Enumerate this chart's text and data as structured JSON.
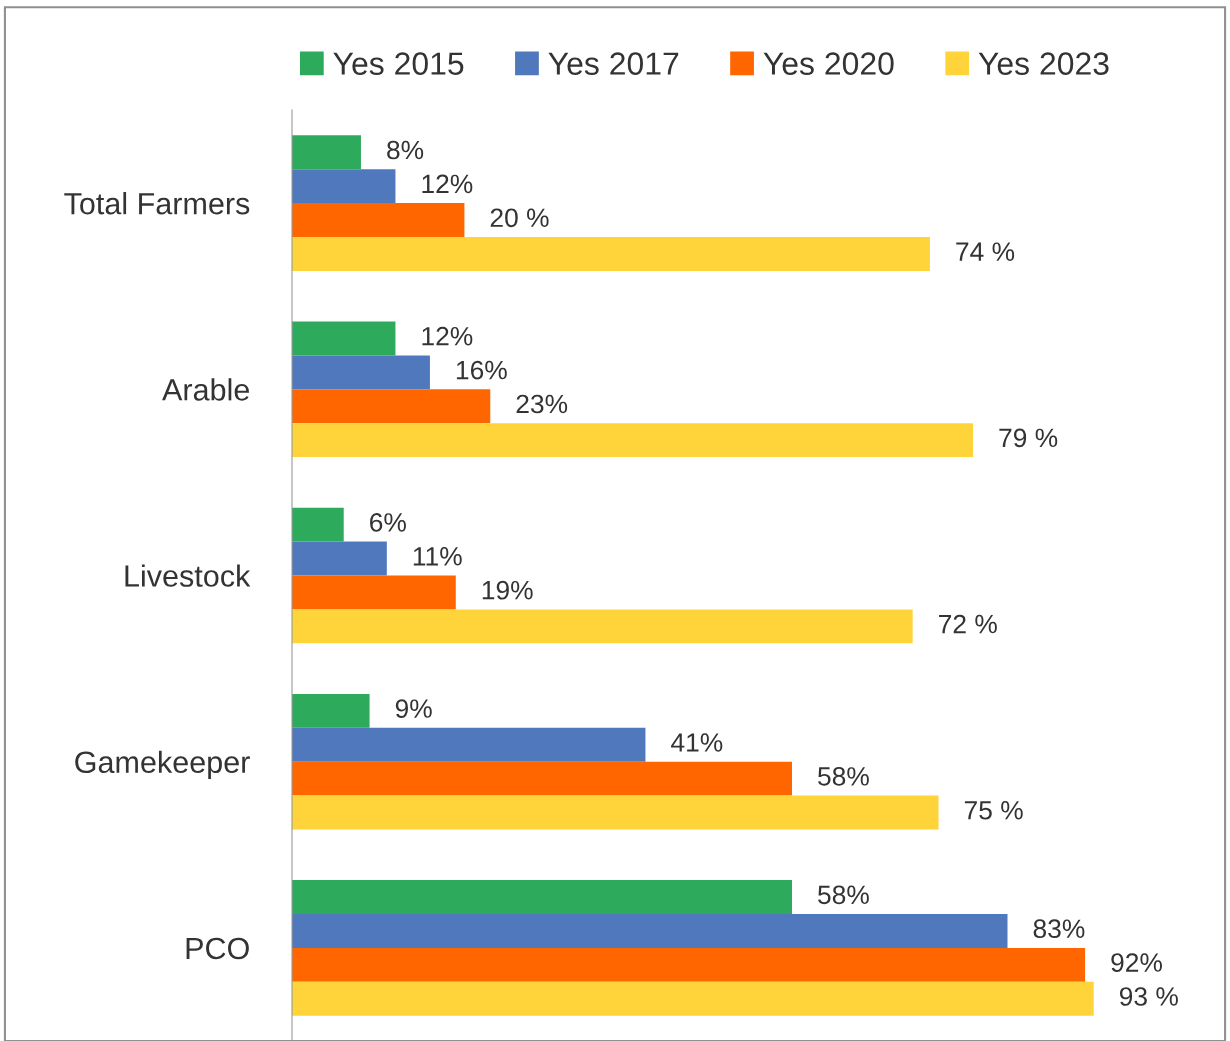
{
  "chart_data": {
    "type": "bar",
    "orientation": "horizontal",
    "categories": [
      "Total Farmers",
      "Arable",
      "Livestock",
      "Gamekeeper",
      "PCO"
    ],
    "series": [
      {
        "name": "Yes 2015",
        "color": "#2eaa5c",
        "values": [
          8,
          12,
          6,
          9,
          58
        ],
        "value_labels": [
          "8%",
          "12%",
          "6%",
          "9%",
          "58%"
        ]
      },
      {
        "name": "Yes 2017",
        "color": "#4f78bd",
        "values": [
          12,
          16,
          11,
          41,
          83
        ],
        "value_labels": [
          "12%",
          "16%",
          "11%",
          "41%",
          "83%"
        ]
      },
      {
        "name": "Yes 2020",
        "color": "#ff6600",
        "values": [
          20,
          23,
          19,
          58,
          92
        ],
        "value_labels": [
          "20 %",
          "23%",
          "19%",
          "58%",
          "92%"
        ]
      },
      {
        "name": "Yes 2023",
        "color": "#ffd43b",
        "values": [
          74,
          79,
          72,
          75,
          93
        ],
        "value_labels": [
          "74 %",
          "79 %",
          "72 %",
          "75 %",
          "93 %"
        ]
      }
    ],
    "legend": "top",
    "grid": false
  }
}
